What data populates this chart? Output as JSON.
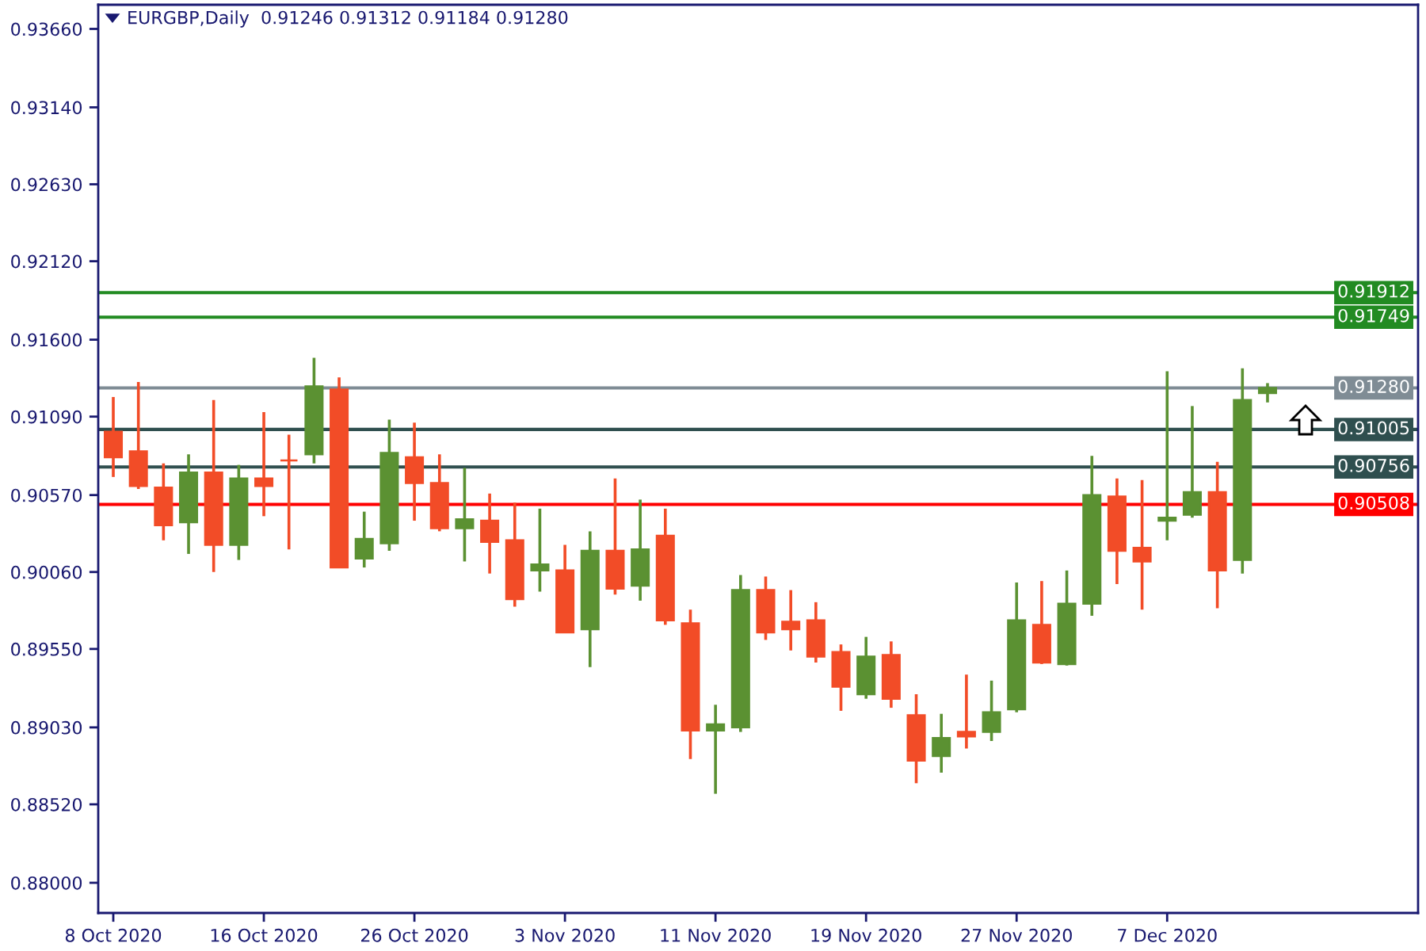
{
  "chart_data": {
    "type": "candlestick",
    "title": "EURGBP,Daily  0.91246 0.91312 0.91184 0.91280",
    "categories": [
      "8 Oct 2020",
      null,
      null,
      null,
      null,
      null,
      "16 Oct 2020",
      null,
      null,
      null,
      null,
      null,
      "26 Oct 2020",
      null,
      null,
      null,
      null,
      null,
      "3 Nov 2020",
      null,
      null,
      null,
      null,
      null,
      "11 Nov 2020",
      null,
      null,
      null,
      null,
      null,
      "19 Nov 2020",
      null,
      null,
      null,
      null,
      null,
      "27 Nov 2020",
      null,
      null,
      null,
      null,
      null,
      "7 Dec 2020",
      null,
      null,
      null,
      null
    ],
    "ohlc": [
      [
        0.9099,
        0.9122,
        0.9069,
        0.9082
      ],
      [
        0.9086,
        0.9132,
        0.9061,
        0.9063
      ],
      [
        0.9062,
        0.9078,
        0.9027,
        0.9037
      ],
      [
        0.9039,
        0.9084,
        0.9018,
        0.9072
      ],
      [
        0.9072,
        0.912,
        0.9006,
        0.9024
      ],
      [
        0.9024,
        0.9077,
        0.9014,
        0.9068
      ],
      [
        0.9068,
        0.9112,
        0.9043,
        0.9063
      ],
      [
        0.908,
        0.9097,
        0.9021,
        0.908
      ],
      [
        0.9084,
        0.9148,
        0.9078,
        0.9129
      ],
      [
        0.9127,
        0.9135,
        0.9009,
        0.9009
      ],
      [
        0.9015,
        0.9046,
        0.9009,
        0.9028
      ],
      [
        0.9025,
        0.9107,
        0.902,
        0.9085
      ],
      [
        0.9082,
        0.9105,
        0.904,
        0.9065
      ],
      [
        0.9065,
        0.9084,
        0.9033,
        0.9035
      ],
      [
        0.9035,
        0.9075,
        0.9013,
        0.9041
      ],
      [
        0.904,
        0.9058,
        0.9005,
        0.9026
      ],
      [
        0.9027,
        0.9052,
        0.8983,
        0.8988
      ],
      [
        0.9007,
        0.9048,
        0.8993,
        0.9011
      ],
      [
        0.9007,
        0.9024,
        0.8966,
        0.8966
      ],
      [
        0.8968,
        0.9033,
        0.8943,
        0.902
      ],
      [
        0.902,
        0.9068,
        0.8991,
        0.8995
      ],
      [
        0.8997,
        0.9054,
        0.8987,
        0.9021
      ],
      [
        0.903,
        0.9048,
        0.8971,
        0.8974
      ],
      [
        0.8972,
        0.8981,
        0.8882,
        0.8901
      ],
      [
        0.8901,
        0.8918,
        0.8859,
        0.8905
      ],
      [
        0.8903,
        0.9004,
        0.89,
        0.8994
      ],
      [
        0.8994,
        0.9003,
        0.8961,
        0.8966
      ],
      [
        0.8973,
        0.8994,
        0.8954,
        0.8968
      ],
      [
        0.8974,
        0.8986,
        0.8946,
        0.895
      ],
      [
        0.8953,
        0.8958,
        0.8914,
        0.893
      ],
      [
        0.8925,
        0.8963,
        0.8922,
        0.895
      ],
      [
        0.8951,
        0.896,
        0.8916,
        0.8922
      ],
      [
        0.8911,
        0.8925,
        0.8866,
        0.8881
      ],
      [
        0.8884,
        0.8912,
        0.8873,
        0.8896
      ],
      [
        0.89,
        0.8938,
        0.8889,
        0.8897
      ],
      [
        0.89,
        0.8934,
        0.8894,
        0.8913
      ],
      [
        0.8915,
        0.8999,
        0.8913,
        0.8974
      ],
      [
        0.8971,
        0.9,
        0.8945,
        0.8946
      ],
      [
        0.8945,
        0.9007,
        0.8944,
        0.8985
      ],
      [
        0.8985,
        0.9083,
        0.8977,
        0.9057
      ],
      [
        0.9056,
        0.9068,
        0.8998,
        0.902
      ],
      [
        0.9022,
        0.9067,
        0.8981,
        0.9013
      ],
      [
        0.904,
        0.9139,
        0.9027,
        0.9042
      ],
      [
        0.9044,
        0.9116,
        0.9042,
        0.9059
      ],
      [
        0.9059,
        0.9079,
        0.8982,
        0.9007
      ],
      [
        0.9014,
        0.9141,
        0.9005,
        0.912
      ],
      [
        0.91246,
        0.91312,
        0.91184,
        0.9128
      ]
    ],
    "colors": [
      "#f24c27",
      "#f24c27",
      "#f24c27",
      "#5b9132",
      "#f24c27",
      "#5b9132",
      "#f24c27",
      "#f24c27",
      "#5b9132",
      "#f24c27",
      "#5b9132",
      "#5b9132",
      "#f24c27",
      "#f24c27",
      "#5b9132",
      "#f24c27",
      "#f24c27",
      "#5b9132",
      "#f24c27",
      "#5b9132",
      "#f24c27",
      "#5b9132",
      "#f24c27",
      "#f24c27",
      "#5b9132",
      "#5b9132",
      "#f24c27",
      "#f24c27",
      "#f24c27",
      "#f24c27",
      "#5b9132",
      "#f24c27",
      "#f24c27",
      "#5b9132",
      "#f24c27",
      "#5b9132",
      "#5b9132",
      "#f24c27",
      "#5b9132",
      "#5b9132",
      "#f24c27",
      "#f24c27",
      "#5b9132",
      "#5b9132",
      "#f24c27",
      "#5b9132",
      "#5b9132"
    ],
    "ylim": [
      0.878,
      0.9382
    ],
    "yticks": [
      {
        "value": 0.9366,
        "label": "0.93660"
      },
      {
        "value": 0.9314,
        "label": "0.93140"
      },
      {
        "value": 0.9263,
        "label": "0.92630"
      },
      {
        "value": 0.9212,
        "label": "0.92120"
      },
      {
        "value": 0.916,
        "label": "0.91600"
      },
      {
        "value": 0.9109,
        "label": "0.91090"
      },
      {
        "value": 0.9057,
        "label": "0.90570"
      },
      {
        "value": 0.9006,
        "label": "0.90060"
      },
      {
        "value": 0.8955,
        "label": "0.89550"
      },
      {
        "value": 0.8903,
        "label": "0.89030"
      },
      {
        "value": 0.8852,
        "label": "0.88520"
      },
      {
        "value": 0.88,
        "label": "0.88000"
      }
    ],
    "ref_lines": [
      {
        "axis": "y",
        "value": 0.91912,
        "label": "0.91912",
        "color": "#228b22"
      },
      {
        "axis": "y",
        "value": 0.91749,
        "label": "0.91749",
        "color": "#228b22"
      },
      {
        "axis": "y",
        "value": 0.9128,
        "label": "0.91280",
        "color": "#7f8c95"
      },
      {
        "axis": "y",
        "value": 0.91005,
        "label": "0.91005",
        "color": "#2f4f4f"
      },
      {
        "axis": "y",
        "value": 0.90756,
        "label": "0.90756",
        "color": "#2f4f4f"
      },
      {
        "axis": "y",
        "value": 0.90508,
        "label": "0.90508",
        "color": "#ff0000"
      }
    ]
  }
}
